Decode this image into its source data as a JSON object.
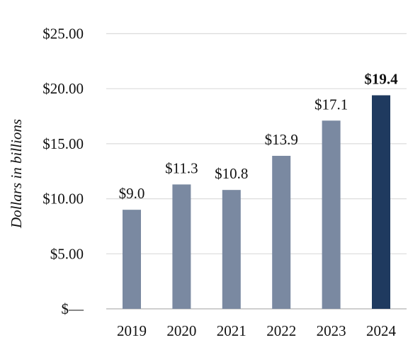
{
  "chart_data": {
    "type": "bar",
    "ylabel": "Dollars in billions",
    "xlabel": "",
    "title": "",
    "ylim": [
      0,
      25
    ],
    "y_ticks": [
      {
        "value": 0,
        "label": "$—"
      },
      {
        "value": 5,
        "label": "$5.00"
      },
      {
        "value": 10,
        "label": "$10.00"
      },
      {
        "value": 15,
        "label": "$15.00"
      },
      {
        "value": 20,
        "label": "$20.00"
      },
      {
        "value": 25,
        "label": "$25.00"
      }
    ],
    "categories": [
      "2019",
      "2020",
      "2021",
      "2022",
      "2023",
      "2024"
    ],
    "values": [
      9.0,
      11.3,
      10.8,
      13.9,
      17.1,
      19.4
    ],
    "data_labels": [
      "$9.0",
      "$11.3",
      "$10.8",
      "$13.9",
      "$17.1",
      "$19.4"
    ],
    "highlight_index": 5,
    "grid": true,
    "legend": "none",
    "colors": {
      "bar": "#7a89a1",
      "highlight_bar": "#1f3a5f",
      "grid": "#dcdcdc"
    }
  }
}
